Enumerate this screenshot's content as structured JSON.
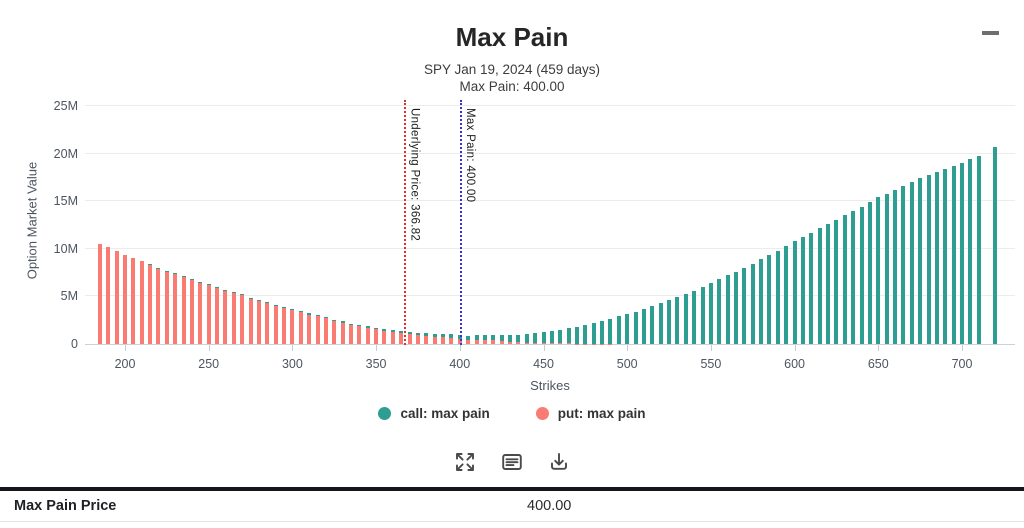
{
  "header": {
    "title": "Max Pain",
    "subtitle1": "SPY Jan 19, 2024 (459 days)",
    "subtitle2": "Max Pain: 400.00"
  },
  "chart_data": {
    "type": "bar",
    "stacked": true,
    "title": "Max Pain",
    "xlabel": "Strikes",
    "ylabel": "Option Market Value",
    "value_unit": "millions",
    "ylim_millions": [
      0,
      25
    ],
    "ytick_labels": [
      "0",
      "5M",
      "10M",
      "15M",
      "20M",
      "25M"
    ],
    "xticks": [
      200,
      250,
      300,
      350,
      400,
      450,
      500,
      550,
      600,
      650,
      700
    ],
    "x": [
      185,
      190,
      195,
      200,
      205,
      210,
      215,
      220,
      225,
      230,
      235,
      240,
      245,
      250,
      255,
      260,
      265,
      270,
      275,
      280,
      285,
      290,
      295,
      300,
      305,
      310,
      315,
      320,
      325,
      330,
      335,
      340,
      345,
      350,
      355,
      360,
      365,
      370,
      375,
      380,
      385,
      390,
      395,
      400,
      405,
      410,
      415,
      420,
      425,
      430,
      435,
      440,
      445,
      450,
      455,
      460,
      465,
      470,
      475,
      480,
      485,
      490,
      495,
      500,
      505,
      510,
      515,
      520,
      525,
      530,
      535,
      540,
      545,
      550,
      555,
      560,
      565,
      570,
      575,
      580,
      585,
      590,
      595,
      600,
      605,
      610,
      615,
      620,
      625,
      630,
      635,
      640,
      645,
      650,
      655,
      660,
      665,
      670,
      675,
      680,
      685,
      690,
      695,
      700,
      705,
      710,
      720
    ],
    "series": [
      {
        "name": "call: max pain",
        "color": "#2f9e92",
        "values": [
          0.02,
          0.02,
          0.02,
          0.02,
          0.02,
          0.02,
          0.03,
          0.03,
          0.03,
          0.03,
          0.04,
          0.04,
          0.04,
          0.05,
          0.05,
          0.06,
          0.06,
          0.07,
          0.07,
          0.08,
          0.08,
          0.09,
          0.09,
          0.1,
          0.1,
          0.11,
          0.11,
          0.12,
          0.12,
          0.13,
          0.14,
          0.15,
          0.16,
          0.17,
          0.18,
          0.2,
          0.22,
          0.24,
          0.26,
          0.28,
          0.3,
          0.33,
          0.36,
          0.4,
          0.44,
          0.48,
          0.52,
          0.57,
          0.63,
          0.7,
          0.78,
          0.88,
          1.0,
          1.15,
          1.28,
          1.42,
          1.58,
          1.75,
          1.95,
          2.15,
          2.4,
          2.65,
          2.9,
          3.15,
          3.4,
          3.7,
          4.0,
          4.3,
          4.6,
          4.9,
          5.25,
          5.6,
          6.0,
          6.4,
          6.8,
          7.2,
          7.6,
          8.0,
          8.45,
          8.9,
          9.35,
          9.8,
          10.3,
          10.8,
          11.25,
          11.7,
          12.15,
          12.6,
          13.05,
          13.5,
          13.95,
          14.4,
          14.9,
          15.4,
          15.8,
          16.2,
          16.6,
          17.0,
          17.4,
          17.8,
          18.1,
          18.4,
          18.7,
          19.0,
          19.4,
          19.8,
          20.7
        ]
      },
      {
        "name": "put: max pain",
        "color": "#f97b72",
        "values": [
          10.5,
          10.15,
          9.75,
          9.35,
          9.0,
          8.7,
          8.4,
          7.95,
          7.65,
          7.4,
          7.1,
          6.8,
          6.5,
          6.3,
          5.9,
          5.6,
          5.4,
          5.15,
          4.8,
          4.5,
          4.3,
          4.0,
          3.75,
          3.6,
          3.4,
          3.1,
          2.9,
          2.7,
          2.45,
          2.25,
          2.0,
          1.85,
          1.7,
          1.55,
          1.4,
          1.25,
          1.12,
          1.0,
          0.92,
          0.85,
          0.78,
          0.72,
          0.65,
          0.5,
          0.45,
          0.42,
          0.4,
          0.38,
          0.3,
          0.22,
          0.18,
          0.15,
          0.12,
          0.1,
          0.08,
          0.07,
          0.06,
          0.05,
          0.04,
          0.04,
          0.03,
          0.03,
          0.02,
          0.02,
          0.02,
          0.01,
          0.01,
          0.01,
          0.01,
          0.01,
          0.01,
          0.01,
          0,
          0,
          0,
          0,
          0,
          0,
          0,
          0,
          0,
          0,
          0,
          0,
          0,
          0,
          0,
          0,
          0,
          0,
          0,
          0,
          0,
          0,
          0,
          0,
          0,
          0,
          0,
          0,
          0,
          0,
          0,
          0,
          0,
          0,
          0
        ]
      }
    ],
    "annotations": [
      {
        "label": "Underlying Price: 366.82",
        "x": 366.82,
        "color": "#e03131",
        "style": "dotted"
      },
      {
        "label": "Max Pain: 400.00",
        "x": 400,
        "color": "#3434d6",
        "style": "dotted"
      }
    ],
    "legend_position": "bottom",
    "grid": true
  },
  "toolbar": {
    "icons": [
      "expand",
      "annotations-list",
      "download"
    ]
  },
  "table": {
    "rows": [
      {
        "label": "Max Pain Price",
        "value": "400.00"
      }
    ]
  }
}
